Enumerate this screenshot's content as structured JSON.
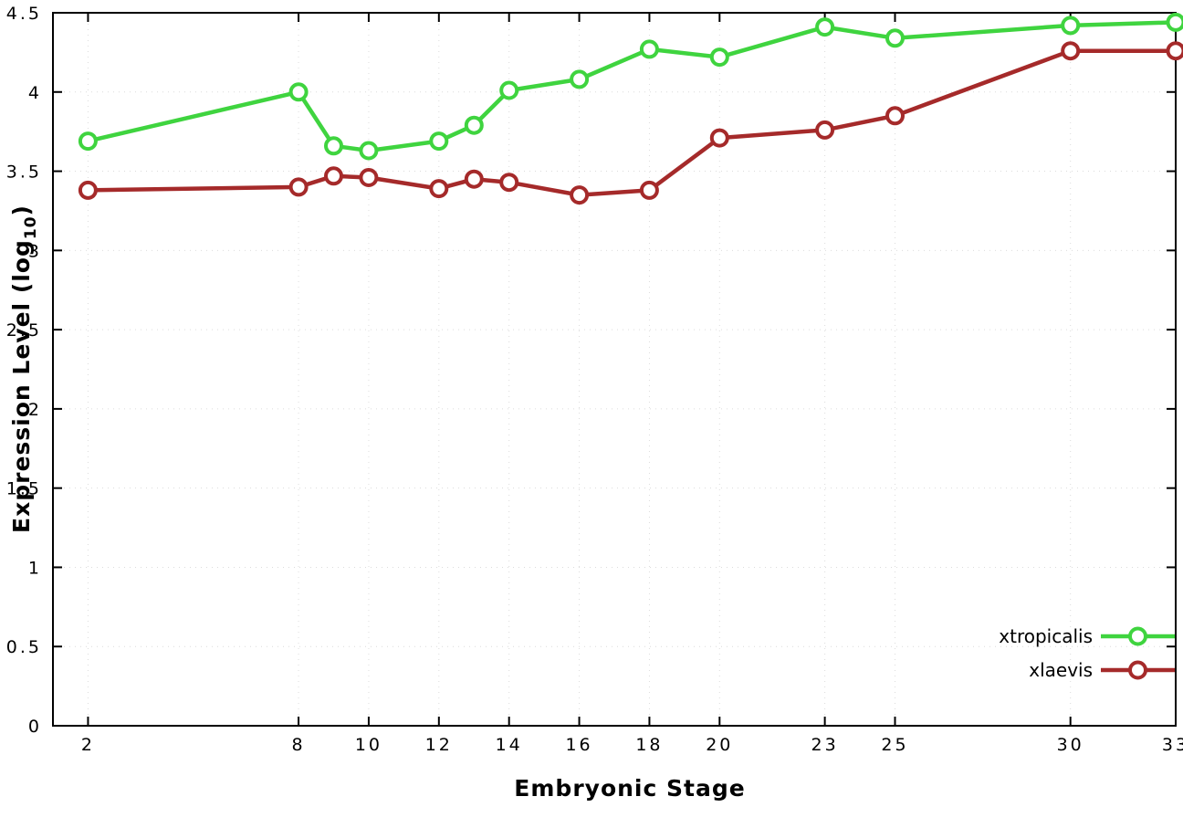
{
  "chart_data": {
    "type": "line",
    "title": "",
    "xlabel": "Embryonic Stage",
    "ylabel": "Expression Level (log10)",
    "ylabel_parts": {
      "pre": "Expression Level (log",
      "sub": "10",
      "post": ")"
    },
    "xlim": [
      1,
      33
    ],
    "ylim": [
      0,
      4.5
    ],
    "xticks": [
      2,
      8,
      10,
      12,
      14,
      16,
      18,
      20,
      23,
      25,
      30,
      33
    ],
    "yticks": [
      0,
      0.5,
      1,
      1.5,
      2,
      2.5,
      3,
      3.5,
      4,
      4.5
    ],
    "ytick_labels": [
      "0",
      "0.5",
      "1",
      "1.5",
      "2",
      "2.5",
      "3",
      "3.5",
      "4",
      "4.5"
    ],
    "x": [
      2,
      8,
      9,
      10,
      12,
      13,
      14,
      16,
      18,
      20,
      23,
      25,
      30,
      33
    ],
    "series": [
      {
        "name": "xtropicalis",
        "color": "#3fd43f",
        "values": [
          3.69,
          4.0,
          3.66,
          3.63,
          3.69,
          3.79,
          4.01,
          4.08,
          4.27,
          4.22,
          4.41,
          4.34,
          4.42,
          4.44
        ]
      },
      {
        "name": "xlaevis",
        "color": "#a52a2a",
        "values": [
          3.38,
          3.4,
          3.47,
          3.46,
          3.39,
          3.45,
          3.43,
          3.35,
          3.38,
          3.71,
          3.76,
          3.85,
          4.26,
          4.26
        ]
      }
    ],
    "legend_position": "bottom-right",
    "grid": true,
    "marker": "open-circle",
    "colors": {
      "background": "#ffffff",
      "axis": "#000000",
      "grid": "#dcdcdc",
      "tick_label": "#000000"
    }
  }
}
